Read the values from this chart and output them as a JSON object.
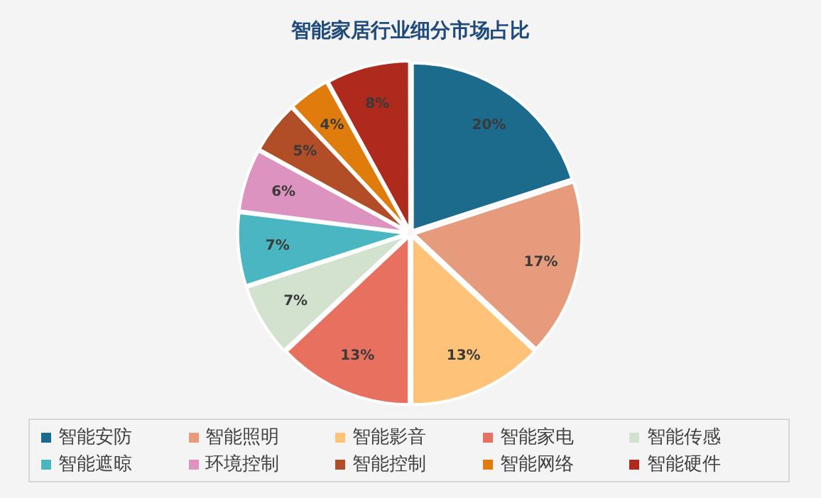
{
  "chart_data": {
    "type": "pie",
    "title": "智能家居行业细分市场占比",
    "categories": [
      "智能安防",
      "智能照明",
      "智能影音",
      "智能家电",
      "智能传感",
      "智能遮晾",
      "环境控制",
      "智能控制",
      "智能网络",
      "智能硬件"
    ],
    "values": [
      20,
      17,
      13,
      13,
      7,
      7,
      6,
      5,
      4,
      8
    ],
    "colors": [
      "#1c6a8c",
      "#e69c7c",
      "#fec378",
      "#e8705f",
      "#d3e1cf",
      "#4ab6c2",
      "#dd93bf",
      "#b14d27",
      "#e07c0c",
      "#ad2a1c"
    ],
    "value_labels": [
      "20%",
      "17%",
      "13%",
      "13%",
      "7%",
      "7%",
      "6%",
      "5%",
      "4%",
      "8%"
    ],
    "legend": "bottom"
  }
}
